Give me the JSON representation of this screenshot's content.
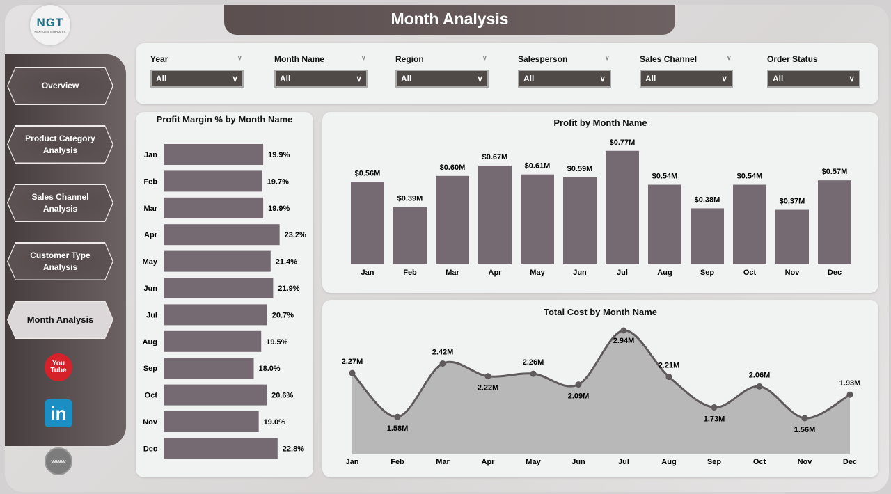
{
  "logo": {
    "text": "NGT",
    "subtext": "NEXT GEN TEMPLATES"
  },
  "header": {
    "title": "Month Analysis"
  },
  "sidebar": {
    "items": [
      {
        "label": "Overview"
      },
      {
        "label": "Product Category Analysis"
      },
      {
        "label": "Sales Channel Analysis"
      },
      {
        "label": "Customer Type Analysis"
      },
      {
        "label": "Month Analysis",
        "active": true
      }
    ],
    "social": [
      {
        "icon": "youtube-icon",
        "text": "You Tube"
      },
      {
        "icon": "linkedin-icon",
        "text": "in"
      },
      {
        "icon": "website-icon",
        "text": "www"
      }
    ]
  },
  "filters": [
    {
      "label": "Year",
      "value": "All"
    },
    {
      "label": "Month Name",
      "value": "All"
    },
    {
      "label": "Region",
      "value": "All"
    },
    {
      "label": "Salesperson",
      "value": "All"
    },
    {
      "label": "Sales Channel",
      "value": "All"
    },
    {
      "label": "Order Status",
      "value": "All"
    }
  ],
  "colors": {
    "bar": "#756a72",
    "area": "#b9b8b8",
    "line": "#5f5a5b",
    "sidebar": "#5a4f50"
  },
  "chart_data": [
    {
      "type": "bar",
      "orientation": "horizontal",
      "title": "Profit Margin % by Month Name",
      "categories": [
        "Jan",
        "Feb",
        "Mar",
        "Apr",
        "May",
        "Jun",
        "Jul",
        "Aug",
        "Sep",
        "Oct",
        "Nov",
        "Dec"
      ],
      "values": [
        19.9,
        19.7,
        19.9,
        23.2,
        21.4,
        21.9,
        20.7,
        19.5,
        18.0,
        20.6,
        19.0,
        22.8
      ],
      "labels": [
        "19.9%",
        "19.7%",
        "19.9%",
        "23.2%",
        "21.4%",
        "21.9%",
        "20.7%",
        "19.5%",
        "18.0%",
        "20.6%",
        "19.0%",
        "22.8%"
      ]
    },
    {
      "type": "bar",
      "title": "Profit by Month Name",
      "categories": [
        "Jan",
        "Feb",
        "Mar",
        "Apr",
        "May",
        "Jun",
        "Jul",
        "Aug",
        "Sep",
        "Oct",
        "Nov",
        "Dec"
      ],
      "values": [
        0.56,
        0.39,
        0.6,
        0.67,
        0.61,
        0.59,
        0.77,
        0.54,
        0.38,
        0.54,
        0.37,
        0.57
      ],
      "labels": [
        "$0.56M",
        "$0.39M",
        "$0.60M",
        "$0.67M",
        "$0.61M",
        "$0.59M",
        "$0.77M",
        "$0.54M",
        "$0.38M",
        "$0.54M",
        "$0.37M",
        "$0.57M"
      ],
      "unit": "M"
    },
    {
      "type": "area",
      "title": "Total Cost by Month Name",
      "categories": [
        "Jan",
        "Feb",
        "Mar",
        "Apr",
        "May",
        "Jun",
        "Jul",
        "Aug",
        "Sep",
        "Oct",
        "Nov",
        "Dec"
      ],
      "values": [
        2.27,
        1.58,
        2.42,
        2.22,
        2.26,
        2.09,
        2.94,
        2.21,
        1.73,
        2.06,
        1.56,
        1.93
      ],
      "labels": [
        "2.27M",
        "1.58M",
        "2.42M",
        "2.22M",
        "2.26M",
        "2.09M",
        "2.94M",
        "2.21M",
        "1.73M",
        "2.06M",
        "1.56M",
        "1.93M"
      ],
      "unit": "M"
    }
  ]
}
